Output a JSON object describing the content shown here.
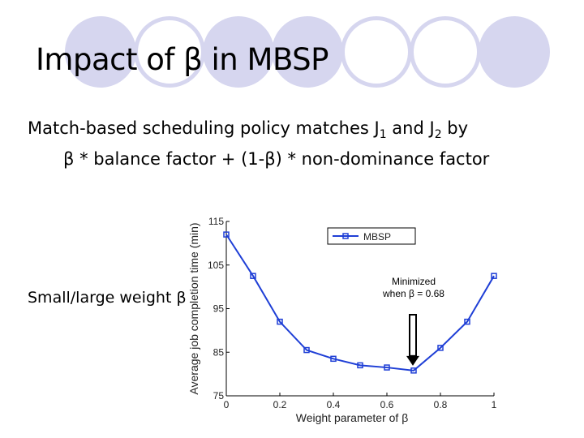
{
  "slide": {
    "title": "Impact of β in MBSP",
    "line1_prefix": "Match-based scheduling policy matches J",
    "line1_sub1": "1",
    "line1_mid": " and J",
    "line1_sub2": "2",
    "line1_suffix": " by",
    "line2": "β * balance factor + (1-β) * non-dominance factor",
    "side_label": "Small/large weight β"
  },
  "colors": {
    "circle": "#d6d6ef",
    "series": "#1f3fd6",
    "axis": "#000000"
  },
  "chart_data": {
    "type": "line",
    "title": "",
    "xlabel": "Weight parameter of β",
    "ylabel": "Average job completion time (min)",
    "xlim": [
      0,
      1
    ],
    "ylim": [
      75,
      115
    ],
    "xticks": [
      "0",
      "0.2",
      "0.4",
      "0.6",
      "0.8",
      "1"
    ],
    "yticks": [
      "75",
      "85",
      "95",
      "105",
      "115"
    ],
    "legend": "MBSP",
    "annotation_line1": "Minimized",
    "annotation_line2": "when β = 0.68",
    "series": [
      {
        "name": "MBSP",
        "x": [
          0,
          0.1,
          0.2,
          0.3,
          0.4,
          0.5,
          0.6,
          0.7,
          0.8,
          0.9,
          1.0
        ],
        "y": [
          112,
          102.5,
          92,
          85.5,
          83.5,
          82,
          81.5,
          80.8,
          86,
          92,
          102.5
        ]
      }
    ]
  }
}
